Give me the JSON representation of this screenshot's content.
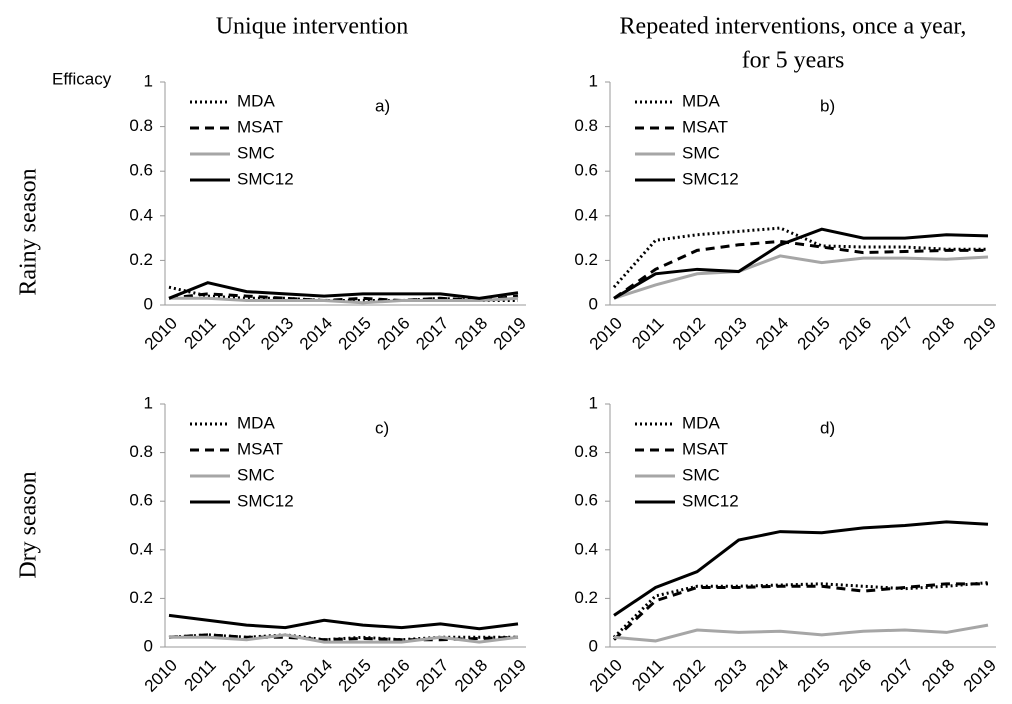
{
  "column_titles": [
    [
      "Unique intervention"
    ],
    [
      "Repeated interventions, once a year,",
      "for 5 years"
    ]
  ],
  "row_labels": [
    "Rainy season",
    "Dry season"
  ],
  "chart_data": [
    {
      "type": "line",
      "annotation": "a)",
      "ylabel": "Efficacy",
      "categories": [
        "2010",
        "2011",
        "2012",
        "2013",
        "2014",
        "2015",
        "2016",
        "2017",
        "2018",
        "2019"
      ],
      "ylim": [
        0,
        1
      ],
      "yticks": [
        0,
        0.2,
        0.4,
        0.6,
        0.8,
        1
      ],
      "legend": "upper left",
      "series": [
        {
          "name": "MDA",
          "color": "#000000",
          "dash": "dotted",
          "values": [
            0.08,
            0.04,
            0.03,
            0.03,
            0.02,
            0.02,
            0.02,
            0.03,
            0.02,
            0.02
          ]
        },
        {
          "name": "MSAT",
          "color": "#000000",
          "dash": "dashed",
          "values": [
            0.03,
            0.05,
            0.04,
            0.03,
            0.02,
            0.03,
            0.02,
            0.03,
            0.02,
            0.04
          ]
        },
        {
          "name": "SMC",
          "color": "#a6a6a6",
          "dash": "solid",
          "values": [
            0.03,
            0.03,
            0.02,
            0.02,
            0.02,
            0.01,
            0.02,
            0.02,
            0.02,
            0.03
          ]
        },
        {
          "name": "SMC12",
          "color": "#000000",
          "dash": "solid",
          "values": [
            0.03,
            0.1,
            0.06,
            0.05,
            0.04,
            0.05,
            0.05,
            0.05,
            0.03,
            0.055
          ]
        }
      ]
    },
    {
      "type": "line",
      "annotation": "b)",
      "categories": [
        "2010",
        "2011",
        "2012",
        "2013",
        "2014",
        "2015",
        "2016",
        "2017",
        "2018",
        "2019"
      ],
      "ylim": [
        0,
        1
      ],
      "yticks": [
        0,
        0.2,
        0.4,
        0.6,
        0.8,
        1
      ],
      "legend": "upper left",
      "series": [
        {
          "name": "MDA",
          "color": "#000000",
          "dash": "dotted",
          "values": [
            0.08,
            0.29,
            0.315,
            0.33,
            0.345,
            0.265,
            0.26,
            0.26,
            0.25,
            0.25
          ]
        },
        {
          "name": "MSAT",
          "color": "#000000",
          "dash": "dashed",
          "values": [
            0.03,
            0.16,
            0.245,
            0.27,
            0.285,
            0.26,
            0.235,
            0.24,
            0.245,
            0.245
          ]
        },
        {
          "name": "SMC",
          "color": "#a6a6a6",
          "dash": "solid",
          "values": [
            0.03,
            0.09,
            0.14,
            0.15,
            0.22,
            0.19,
            0.21,
            0.21,
            0.205,
            0.215
          ]
        },
        {
          "name": "SMC12",
          "color": "#000000",
          "dash": "solid",
          "values": [
            0.03,
            0.14,
            0.16,
            0.15,
            0.27,
            0.34,
            0.3,
            0.3,
            0.315,
            0.31
          ]
        }
      ]
    },
    {
      "type": "line",
      "annotation": "c)",
      "categories": [
        "2010",
        "2011",
        "2012",
        "2013",
        "2014",
        "2015",
        "2016",
        "2017",
        "2018",
        "2019"
      ],
      "ylim": [
        0,
        1
      ],
      "yticks": [
        0,
        0.2,
        0.4,
        0.6,
        0.8,
        1
      ],
      "legend": "upper left",
      "series": [
        {
          "name": "MDA",
          "color": "#000000",
          "dash": "dotted",
          "values": [
            0.04,
            0.05,
            0.04,
            0.05,
            0.03,
            0.04,
            0.03,
            0.04,
            0.04,
            0.04
          ]
        },
        {
          "name": "MSAT",
          "color": "#000000",
          "dash": "dashed",
          "values": [
            0.04,
            0.05,
            0.04,
            0.04,
            0.03,
            0.035,
            0.03,
            0.03,
            0.035,
            0.04
          ]
        },
        {
          "name": "SMC",
          "color": "#a6a6a6",
          "dash": "solid",
          "values": [
            0.04,
            0.04,
            0.03,
            0.05,
            0.02,
            0.02,
            0.02,
            0.04,
            0.02,
            0.04
          ]
        },
        {
          "name": "SMC12",
          "color": "#000000",
          "dash": "solid",
          "values": [
            0.13,
            0.11,
            0.09,
            0.08,
            0.11,
            0.09,
            0.08,
            0.095,
            0.075,
            0.095
          ]
        }
      ]
    },
    {
      "type": "line",
      "annotation": "d)",
      "categories": [
        "2010",
        "2011",
        "2012",
        "2013",
        "2014",
        "2015",
        "2016",
        "2017",
        "2018",
        "2019"
      ],
      "ylim": [
        0,
        1
      ],
      "yticks": [
        0,
        0.2,
        0.4,
        0.6,
        0.8,
        1
      ],
      "legend": "upper left",
      "series": [
        {
          "name": "MDA",
          "color": "#000000",
          "dash": "dotted",
          "values": [
            0.04,
            0.21,
            0.25,
            0.25,
            0.255,
            0.26,
            0.25,
            0.24,
            0.25,
            0.265
          ]
        },
        {
          "name": "MSAT",
          "color": "#000000",
          "dash": "dashed",
          "values": [
            0.03,
            0.19,
            0.245,
            0.245,
            0.25,
            0.25,
            0.23,
            0.245,
            0.26,
            0.26
          ]
        },
        {
          "name": "SMC",
          "color": "#a6a6a6",
          "dash": "solid",
          "values": [
            0.04,
            0.025,
            0.07,
            0.06,
            0.065,
            0.05,
            0.065,
            0.07,
            0.06,
            0.09
          ]
        },
        {
          "name": "SMC12",
          "color": "#000000",
          "dash": "solid",
          "values": [
            0.13,
            0.245,
            0.31,
            0.44,
            0.475,
            0.47,
            0.49,
            0.5,
            0.515,
            0.505
          ]
        }
      ]
    }
  ]
}
